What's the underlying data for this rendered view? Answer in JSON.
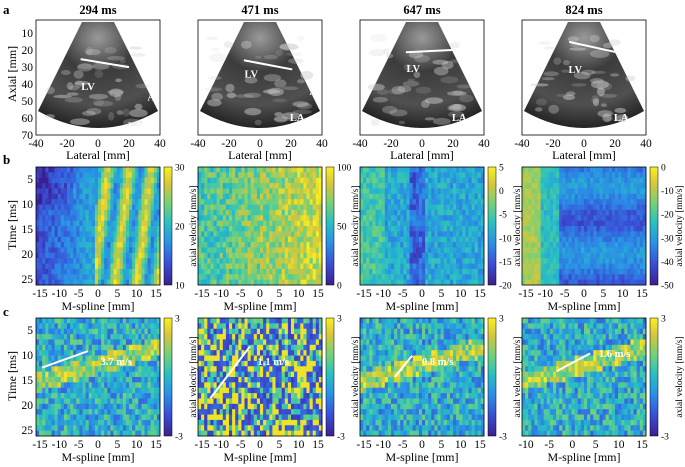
{
  "panel_labels": [
    "a",
    "b",
    "c"
  ],
  "row_a": {
    "titles": [
      "294 ms",
      "471 ms",
      "647 ms",
      "824 ms"
    ],
    "y_label": "Axial [mm]",
    "x_label": "Lateral [mm]",
    "y_ticks": [
      "10",
      "20",
      "30",
      "40",
      "50",
      "60",
      "70"
    ],
    "x_ticks": [
      "-40",
      "-20",
      "0",
      "20",
      "40"
    ],
    "anatomy_labels": [
      "LV",
      "Ao",
      "LA"
    ],
    "colors": {
      "background": "#000000",
      "tissue": "#bdbdbd",
      "overlay_line": "#ffffff"
    }
  },
  "row_b": {
    "y_label": "Time [ms]",
    "x_label": "M-spline [mm]",
    "y_ticks": [
      "5",
      "10",
      "15",
      "20",
      "25"
    ],
    "x_ticks": [
      "-15",
      "-10",
      "-5",
      "0",
      "5",
      "10",
      "15"
    ],
    "colorbar_label": "axial velocity [mm/s]",
    "colorbar_ticks": [
      [
        "30",
        "20",
        "10"
      ],
      [
        "100",
        "50",
        "0"
      ],
      [
        "5",
        "0",
        "-5",
        "-10",
        "-15",
        "-20"
      ],
      [
        "0",
        "-10",
        "-20",
        "-30",
        "-40",
        "-50"
      ]
    ]
  },
  "row_c": {
    "y_label": "Time [ms]",
    "x_label": "M-spline [mm]",
    "y_ticks": [
      "5",
      "10",
      "15",
      "20",
      "25"
    ],
    "x_ticks": [
      [
        "-15",
        "-10",
        "-5",
        "0",
        "5",
        "10",
        "15"
      ],
      [
        "-15",
        "-10",
        "-5",
        "0",
        "5",
        "10",
        "15"
      ],
      [
        "-15",
        "-10",
        "-5",
        "0",
        "5",
        "10",
        "15"
      ],
      [
        "-10",
        "-5",
        "0",
        "5",
        "10",
        "15"
      ]
    ],
    "colorbar_label": "axial velocity [mm/s]",
    "colorbar_ticks": [
      "3",
      "-3"
    ],
    "speed_labels": [
      "3.7 m/s",
      "1.1 m/s",
      "0.8 m/s",
      "1.6 m/s"
    ]
  },
  "colormap": [
    "#3b1f8f",
    "#3a4fd6",
    "#2a8fe6",
    "#27bfc4",
    "#6fd17c",
    "#d3c63d",
    "#fbf01f"
  ]
}
